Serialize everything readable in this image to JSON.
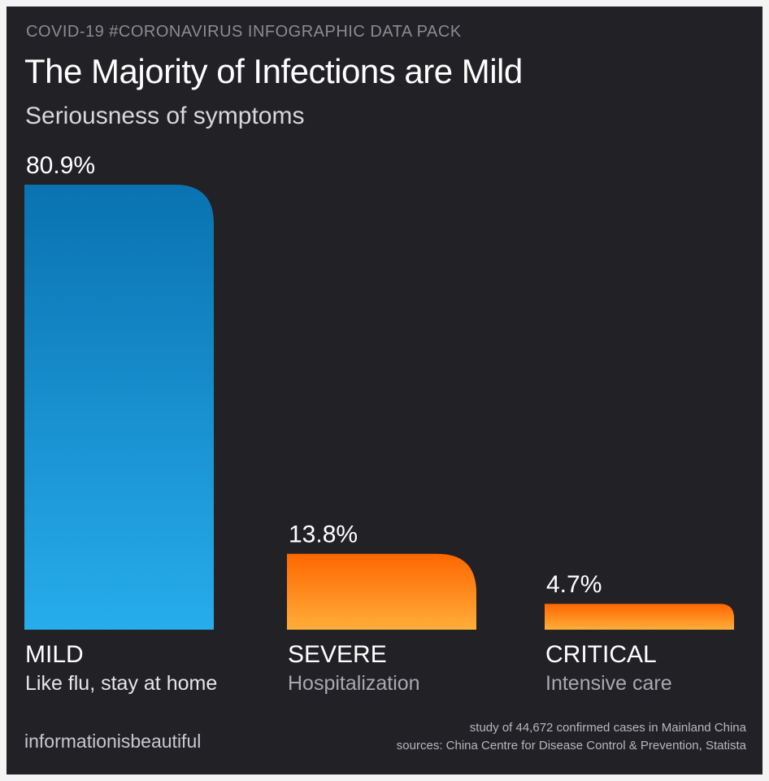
{
  "header": {
    "kicker": "COVID-19 #CORONAVIRUS INFOGRAPHIC DATA PACK",
    "title": "The Majority of Infections are Mild",
    "subtitle": "Seriousness of symptoms"
  },
  "chart_data": {
    "type": "bar",
    "title": "The Majority of Infections are Mild",
    "subtitle": "Seriousness of symptoms",
    "categories": [
      "MILD",
      "SEVERE",
      "CRITICAL"
    ],
    "descriptions": [
      "Like flu, stay at home",
      "Hospitalization",
      "Intensive care"
    ],
    "values": [
      80.9,
      13.8,
      4.7
    ],
    "value_labels": [
      "80.9%",
      "13.8%",
      "4.7%"
    ],
    "unit": "%",
    "ylim": [
      0,
      80.9
    ],
    "xlabel": "",
    "ylabel": "",
    "grid": false,
    "colors": [
      "#1aa3e6",
      "#ff6a00",
      "#ff6a00"
    ],
    "gradient_colors": [
      [
        "#0a72b0",
        "#27acec"
      ],
      [
        "#ff6600",
        "#ffad3a"
      ],
      [
        "#ff6600",
        "#ffad3a"
      ]
    ]
  },
  "footer": {
    "brand": "informationisbeautiful",
    "note": "study of 44,672 confirmed cases in Mainland China",
    "sources": "sources: China Centre for Disease Control & Prevention, Statista"
  },
  "colors": {
    "background": "#222126",
    "text": "#ffffff",
    "muted": "#8c8b92"
  }
}
